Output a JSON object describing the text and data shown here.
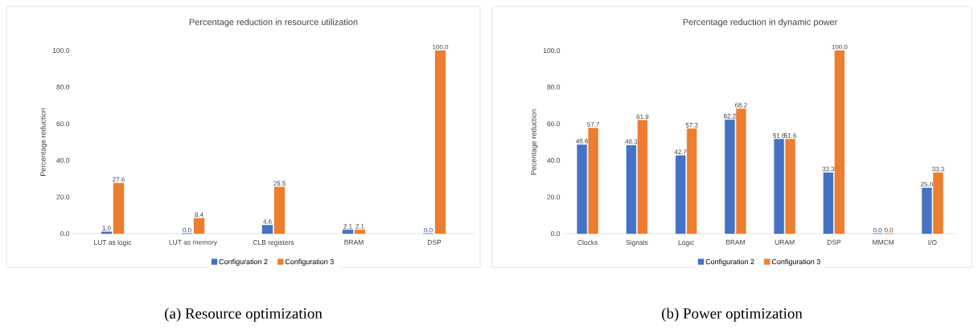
{
  "chart_data": [
    {
      "type": "bar",
      "title": "Percentage reduction in resource utilization",
      "ylabel": "Percentage reduction",
      "categories": [
        "LUT as logic",
        "LUT as memory",
        "CLB registers",
        "BRAM",
        "DSP"
      ],
      "series": [
        {
          "name": "Configuration 2",
          "color": "#4472c4",
          "values": [
            1.0,
            0.0,
            4.6,
            2.1,
            0.0
          ],
          "value_labels": [
            "1.0",
            "0.0",
            "4.6",
            "2.1",
            "0.0"
          ]
        },
        {
          "name": "Configuration 3",
          "color": "#ed7d31",
          "values": [
            27.6,
            8.4,
            25.5,
            2.1,
            100.0
          ],
          "value_labels": [
            "27.6",
            "8.4",
            "25.5",
            "2.1",
            "100.0"
          ]
        }
      ],
      "ylim": [
        0,
        100
      ],
      "yticks": [
        {
          "value": 0,
          "label": "0.0"
        },
        {
          "value": 20,
          "label": "20.0"
        },
        {
          "value": 40,
          "label": "40.0"
        },
        {
          "value": 60,
          "label": "60.0"
        },
        {
          "value": 80,
          "label": "80.0"
        },
        {
          "value": 100,
          "label": "100.0"
        }
      ],
      "legend": "bottom",
      "annotations": [
        "(a) Resource optimization"
      ]
    },
    {
      "type": "bar",
      "title": "Percentage reduction in dynamic power",
      "ylabel": "Pecentage reduction",
      "categories": [
        "Clocks",
        "Signals",
        "Logic",
        "BRAM",
        "URAM",
        "DSP",
        "MMCM",
        "I/O"
      ],
      "series": [
        {
          "name": "Configuration 2",
          "color": "#4472c4",
          "values": [
            48.6,
            48.3,
            42.7,
            62.2,
            51.6,
            33.3,
            0.0,
            25.0
          ],
          "value_labels": [
            "48.6",
            "48.3",
            "42.7",
            "62.2",
            "51.6",
            "33.3",
            "0.0",
            "25.0"
          ]
        },
        {
          "name": "Configuration 3",
          "color": "#ed7d31",
          "values": [
            57.7,
            61.9,
            57.3,
            68.2,
            51.6,
            100.0,
            0.0,
            33.3
          ],
          "value_labels": [
            "57.7",
            "61.9",
            "57.3",
            "68.2",
            "51.6",
            "100.0",
            "0.0",
            "33.3"
          ]
        }
      ],
      "ylim": [
        0,
        100
      ],
      "yticks": [
        {
          "value": 0,
          "label": "0.0"
        },
        {
          "value": 20,
          "label": "20.0"
        },
        {
          "value": 40,
          "label": "40.0"
        },
        {
          "value": 60,
          "label": "60.0"
        },
        {
          "value": 80,
          "label": "80.0"
        },
        {
          "value": 100,
          "label": "100.0"
        }
      ],
      "legend": "bottom",
      "annotations": [
        "(b) Power optimization"
      ]
    }
  ]
}
